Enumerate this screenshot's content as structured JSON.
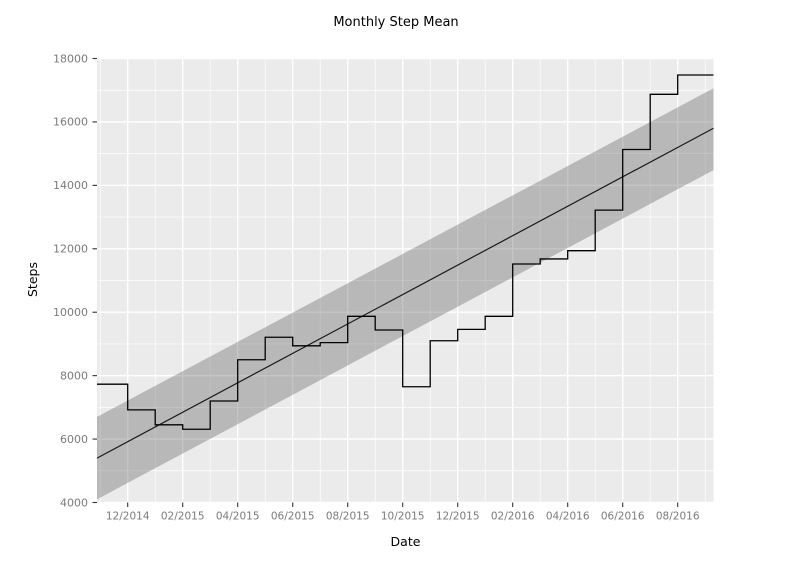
{
  "title": "Monthly Step Mean",
  "colors": {
    "figure_bg": "#ffffff",
    "panel_bg": "#ebebeb",
    "grid": "#ffffff",
    "step_line": "#000000",
    "trend_line": "#1a1a1a",
    "band_fill": "#5a5a5a",
    "band_opacity": "0.35",
    "tick_mark": "#333333",
    "tick_label": "#7b7b7b",
    "text": "#000000"
  },
  "chart_data": {
    "type": "line",
    "subtype": "step-line-with-linear-trend-and-confidence-band",
    "title": "Monthly Step Mean",
    "xlabel": "Date",
    "ylabel": "Steps",
    "ylim": [
      4000,
      18000
    ],
    "y_ticks": [
      4000,
      6000,
      8000,
      10000,
      12000,
      14000,
      16000,
      18000
    ],
    "y_minor_ticks": [
      5000,
      7000,
      9000,
      11000,
      13000,
      15000,
      17000
    ],
    "x_tick_labels": [
      "12/2014",
      "02/2015",
      "04/2015",
      "06/2015",
      "08/2015",
      "10/2015",
      "12/2015",
      "02/2016",
      "04/2016",
      "06/2016",
      "08/2016"
    ],
    "grid": true,
    "legend": false,
    "months": [
      "11/2014",
      "12/2014",
      "01/2015",
      "02/2015",
      "03/2015",
      "04/2015",
      "05/2015",
      "06/2015",
      "07/2015",
      "08/2015",
      "09/2015",
      "10/2015",
      "11/2015",
      "12/2015",
      "01/2016",
      "02/2016",
      "03/2016",
      "04/2016",
      "05/2016",
      "06/2016",
      "07/2016",
      "08/2016"
    ],
    "series": [
      {
        "name": "monthly mean steps",
        "style": "step",
        "values": [
          7730,
          6920,
          6450,
          6310,
          7200,
          8500,
          9210,
          8940,
          9040,
          9870,
          9440,
          7650,
          9100,
          9460,
          9870,
          11520,
          11680,
          11940,
          13220,
          15130,
          16870,
          17480
        ]
      },
      {
        "name": "linear trend",
        "style": "line",
        "endpoints_y": [
          5400,
          15800
        ]
      },
      {
        "name": "confidence band",
        "style": "band",
        "upper_endpoints_y": [
          6700,
          17060
        ],
        "lower_endpoints_y": [
          4100,
          14480
        ]
      }
    ]
  }
}
